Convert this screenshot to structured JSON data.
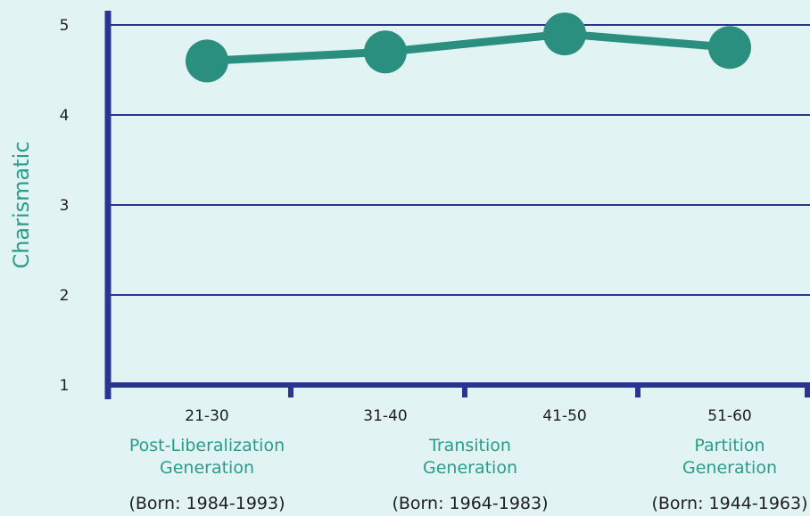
{
  "chart_data": {
    "type": "line",
    "title": "",
    "xlabel": "",
    "ylabel": "Charismatic",
    "ylim": [
      1,
      5
    ],
    "yticks": [
      "1",
      "2",
      "3",
      "4",
      "5"
    ],
    "grid": true,
    "categories": [
      "21-30",
      "31-40",
      "41-50",
      "51-60"
    ],
    "category_groups": [
      {
        "name_lines": [
          "Post-Liberalization",
          "Generation"
        ],
        "born": "(Born: 1984-1993)"
      },
      {
        "name_lines": [
          "Transition",
          "Generation"
        ],
        "born": "(Born: 1964-1983)"
      },
      {
        "name_lines": [
          "Partition",
          "Generation"
        ],
        "born": "(Born: 1944-1963)"
      }
    ],
    "series": [
      {
        "values": [
          4.6,
          4.7,
          4.9,
          4.75
        ]
      }
    ],
    "colors": {
      "background": "#e1f3f3",
      "axis": "#2b3590",
      "line": "#2a8f7e",
      "label_accent": "#2a9d8a",
      "text": "#1e1e1e"
    }
  }
}
